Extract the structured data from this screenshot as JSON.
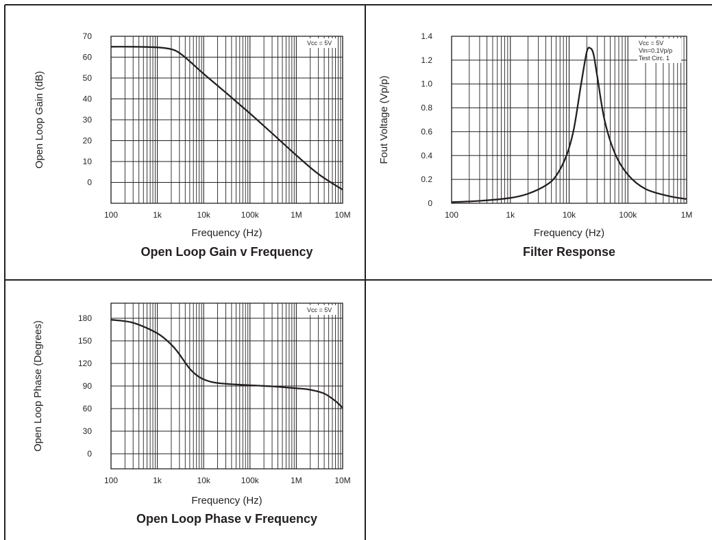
{
  "chart_data": [
    {
      "type": "line",
      "title": "Open Loop Gain v Frequency",
      "xlabel": "Frequency (Hz)",
      "ylabel": "Open Loop Gain (dB)",
      "x_scale": "log",
      "xlim": [
        100,
        10000000
      ],
      "ylim": [
        -10,
        70
      ],
      "x_ticks": [
        100,
        1000,
        10000,
        100000,
        1000000,
        10000000
      ],
      "x_tick_labels": [
        "100",
        "1k",
        "10k",
        "100k",
        "1M",
        "10M"
      ],
      "y_ticks": [
        0,
        10,
        20,
        30,
        40,
        50,
        60,
        70
      ],
      "y_tick_labels": [
        "0",
        "10",
        "20",
        "30",
        "40",
        "50",
        "60",
        "70"
      ],
      "annotations": [
        "Vcc = 5V"
      ],
      "grid": true,
      "series": [
        {
          "x": [
            100,
            300,
            1000,
            2000,
            3000,
            5000,
            10000,
            30000,
            100000,
            300000,
            1000000,
            3000000,
            10000000
          ],
          "y": [
            65,
            65,
            64.7,
            63.8,
            62,
            58,
            52,
            43,
            33,
            23.5,
            13,
            4,
            -3.5
          ]
        }
      ]
    },
    {
      "type": "line",
      "title": "Filter Response",
      "xlabel": "Frequency (Hz)",
      "ylabel": "Fout Voltage (Vp/p)",
      "x_scale": "log",
      "xlim": [
        100,
        1000000
      ],
      "ylim": [
        0,
        1.4
      ],
      "x_ticks": [
        100,
        1000,
        10000,
        100000,
        1000000
      ],
      "x_tick_labels": [
        "100",
        "1k",
        "10k",
        "100k",
        "1M"
      ],
      "y_ticks": [
        0,
        0.2,
        0.4,
        0.6,
        0.8,
        1.0,
        1.2,
        1.4
      ],
      "y_tick_labels": [
        "0",
        "0.2",
        "0.4",
        "0.6",
        "0.8",
        "1.0",
        "1.2",
        "1.4"
      ],
      "annotations": [
        "Vcc = 5V",
        "Vin=0.1Vp/p",
        "Test Circ. 1"
      ],
      "grid": true,
      "series": [
        {
          "x": [
            100,
            300,
            1000,
            2000,
            4000,
            6000,
            9000,
            12000,
            16000,
            20000,
            23000,
            26000,
            30000,
            40000,
            60000,
            100000,
            200000,
            500000,
            1000000
          ],
          "y": [
            0.01,
            0.02,
            0.045,
            0.08,
            0.15,
            0.23,
            0.4,
            0.62,
            1.0,
            1.27,
            1.3,
            1.25,
            1.07,
            0.7,
            0.42,
            0.24,
            0.12,
            0.06,
            0.035
          ]
        }
      ]
    },
    {
      "type": "line",
      "title": "Open Loop Phase v Frequency",
      "xlabel": "Frequency (Hz)",
      "ylabel": "Open Loop Phase (Degrees)",
      "x_scale": "log",
      "xlim": [
        100,
        10000000
      ],
      "ylim": [
        -20,
        200
      ],
      "x_ticks": [
        100,
        1000,
        10000,
        100000,
        1000000,
        10000000
      ],
      "x_tick_labels": [
        "100",
        "1k",
        "10k",
        "100k",
        "1M",
        "10M"
      ],
      "y_ticks": [
        0,
        30,
        60,
        90,
        120,
        150,
        180
      ],
      "y_tick_labels": [
        "0",
        "30",
        "60",
        "90",
        "120",
        "150",
        "180"
      ],
      "annotations": [
        "Vcc = 5V"
      ],
      "grid": true,
      "series": [
        {
          "x": [
            100,
            300,
            1000,
            2000,
            3000,
            5000,
            8000,
            12000,
            20000,
            50000,
            100000,
            300000,
            1000000,
            2000000,
            4000000,
            7000000,
            10000000
          ],
          "y": [
            178,
            174,
            160,
            145,
            132,
            113,
            102,
            97,
            94,
            92,
            91,
            89.5,
            87,
            85,
            80,
            70,
            61
          ]
        }
      ]
    }
  ]
}
